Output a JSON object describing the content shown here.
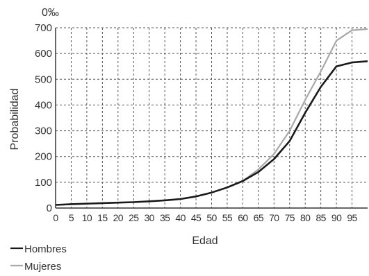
{
  "chart_data": {
    "type": "line",
    "unit_label": "0‰",
    "xlabel": "Edad",
    "ylabel": "Probabilidad",
    "xlim": [
      0,
      100
    ],
    "ylim": [
      0,
      700
    ],
    "x_ticks": [
      0,
      5,
      10,
      15,
      20,
      25,
      30,
      35,
      40,
      45,
      50,
      55,
      60,
      65,
      70,
      75,
      80,
      85,
      90,
      95
    ],
    "y_ticks": [
      0,
      100,
      200,
      300,
      400,
      500,
      600,
      700
    ],
    "grid": true,
    "legend_position": "bottom-left",
    "series": [
      {
        "name": "Hombres",
        "color": "#1a1a1a",
        "x": [
          0,
          5,
          10,
          15,
          20,
          25,
          30,
          35,
          40,
          45,
          50,
          55,
          60,
          65,
          70,
          75,
          80,
          85,
          90,
          95,
          100
        ],
        "y": [
          12,
          15,
          17,
          19,
          21,
          23,
          26,
          30,
          35,
          45,
          60,
          80,
          105,
          140,
          190,
          260,
          370,
          470,
          550,
          565,
          570
        ]
      },
      {
        "name": "Mujeres",
        "color": "#a8a8a8",
        "x": [
          0,
          5,
          10,
          15,
          20,
          25,
          30,
          35,
          40,
          45,
          50,
          55,
          60,
          65,
          70,
          75,
          80,
          85,
          90,
          95,
          100
        ],
        "y": [
          12,
          15,
          17,
          19,
          21,
          23,
          26,
          30,
          35,
          45,
          60,
          80,
          105,
          150,
          210,
          300,
          420,
          530,
          650,
          690,
          695
        ]
      }
    ]
  }
}
